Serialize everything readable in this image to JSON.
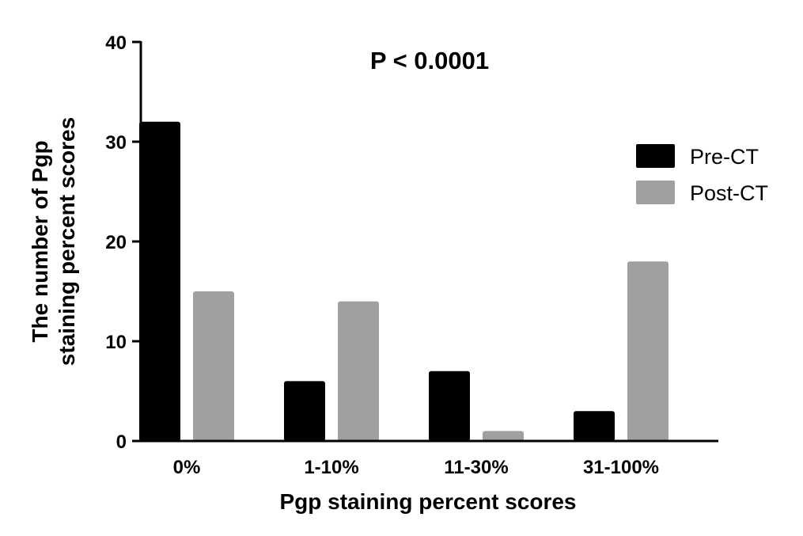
{
  "chart_data": {
    "type": "bar",
    "title": "P < 0.0001",
    "xlabel": "Pgp staining percent scores",
    "ylabel_lines": [
      "The number of Pgp",
      "staining percent scores"
    ],
    "categories": [
      "0%",
      "1-10%",
      "11-30%",
      "31-100%"
    ],
    "series": [
      {
        "name": "Pre-CT",
        "values": [
          32,
          6,
          7,
          3
        ],
        "color": "#000000"
      },
      {
        "name": "Post-CT",
        "values": [
          15,
          14,
          1,
          18
        ],
        "color": "#a0a0a2"
      }
    ],
    "ylim": [
      0,
      40
    ],
    "yticks": [
      0,
      10,
      20,
      30,
      40
    ],
    "grid": false,
    "legend_position": "right"
  }
}
